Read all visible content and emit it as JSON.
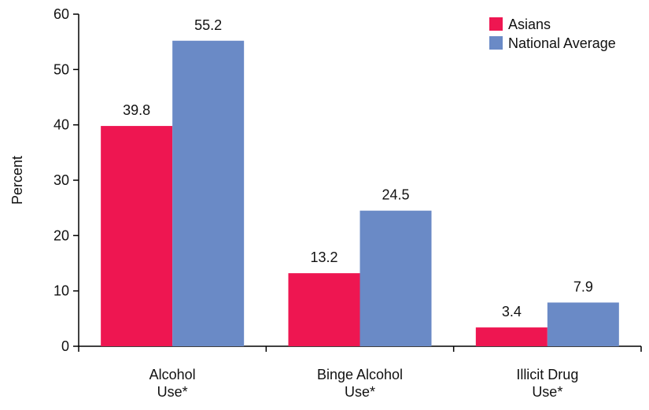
{
  "chart_data": {
    "type": "bar",
    "title": "",
    "xlabel": "",
    "ylabel": "Percent",
    "ylim": [
      0,
      60
    ],
    "yticks": [
      0,
      10,
      20,
      30,
      40,
      50,
      60
    ],
    "grid": false,
    "legend_position": "top-right",
    "categories": [
      [
        "Alcohol",
        "Use*"
      ],
      [
        "Binge Alcohol",
        "Use*"
      ],
      [
        "Illicit Drug",
        "Use*"
      ]
    ],
    "series": [
      {
        "name": "Asians",
        "color": "#ee1651",
        "values": [
          39.8,
          13.2,
          3.4
        ]
      },
      {
        "name": "National Average",
        "color": "#6a8ac6",
        "values": [
          55.2,
          24.5,
          7.9
        ]
      }
    ]
  }
}
